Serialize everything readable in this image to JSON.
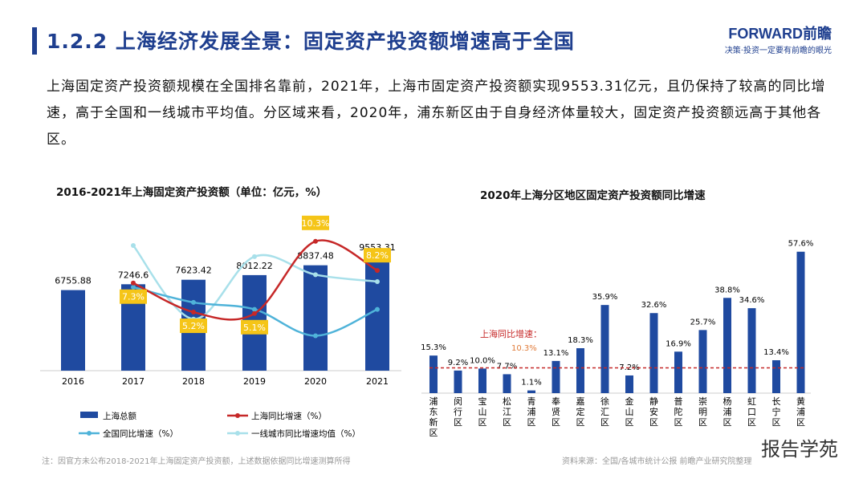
{
  "header": {
    "title": "1.2.2 上海经济发展全景：固定资产投资额增速高于全国",
    "brand": "FORWARD前瞻",
    "slogan": "决策·投资一定要有前瞻的眼光"
  },
  "paragraph": "上海固定资产投资额规模在全国排名靠前，2021年，上海市固定资产投资额实现9553.31亿元，且仍保持了较高的同比增速，高于全国和一线城市平均值。分区域来看，2020年，浦东新区由于自身经济体量较大，固定资产投资额远高于其他各区。",
  "chart_data": [
    {
      "type": "bar+line",
      "title": "2016-2021年上海固定资产投资额（单位：亿元，%）",
      "categories": [
        "2016",
        "2017",
        "2018",
        "2019",
        "2020",
        "2021"
      ],
      "bars": {
        "name": "上海总额",
        "values": [
          6755.88,
          7246.6,
          7623.42,
          8012.22,
          8837.48,
          9553.31
        ],
        "labels": [
          "6755.88",
          "7246.6",
          "7623.42",
          "8012.22",
          "8837.48",
          "9553.31"
        ],
        "color": "#1f4aa0"
      },
      "lines": [
        {
          "name": "上海同比增速（%）",
          "values": [
            null,
            7.3,
            5.2,
            5.1,
            10.3,
            8.2
          ],
          "labels": [
            "",
            "7.3%",
            "5.2%",
            "5.1%",
            "10.3%",
            "8.2%"
          ],
          "color": "#c62828"
        },
        {
          "name": "全国同比增速（%）",
          "values": [
            null,
            7.0,
            5.9,
            5.4,
            3.5,
            5.4
          ],
          "color": "#4fb3d9"
        },
        {
          "name": "一线城市同比增速均值（%）",
          "values": [
            null,
            10.0,
            4.7,
            9.2,
            7.9,
            7.4
          ],
          "color": "#a8e0ea"
        }
      ]
    },
    {
      "type": "bar",
      "title": "2020年上海分区地区固定资产投资额同比增速",
      "categories": [
        "浦东新区",
        "闵行区",
        "宝山区",
        "松江区",
        "青浦区",
        "奉贤区",
        "嘉定区",
        "徐汇区",
        "金山区",
        "静安区",
        "普陀区",
        "崇明区",
        "杨浦区",
        "虹口区",
        "长宁区",
        "黄浦区"
      ],
      "values": [
        15.3,
        9.2,
        10.0,
        7.7,
        1.1,
        13.1,
        18.3,
        35.9,
        7.2,
        32.6,
        16.9,
        25.7,
        38.8,
        34.6,
        13.4,
        57.6
      ],
      "labels": [
        "15.3%",
        "9.2%",
        "10.0%",
        "7.7%",
        "1.1%",
        "13.1%",
        "18.3%",
        "35.9%",
        "7.2%",
        "32.6%",
        "16.9%",
        "25.7%",
        "38.8%",
        "34.6%",
        "13.4%",
        "57.6%"
      ],
      "reference": {
        "label": "上海同比增速：",
        "value": 10.3,
        "value_label": "10.3%",
        "color": "#c62828"
      },
      "color": "#1f4aa0"
    }
  ],
  "footer": {
    "note": "注：因官方未公布2018-2021年上海固定资产投资额，上述数据依据同比增速测算所得",
    "source": "资料来源：全国/各城市统计公报 前瞻产业研究院整理",
    "watermark": "报告学苑"
  }
}
